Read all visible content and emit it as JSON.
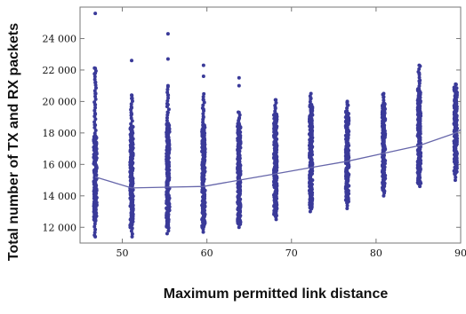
{
  "chart_data": {
    "type": "scatter",
    "title": "",
    "xlabel": "Maximum permitted link distance",
    "ylabel": "Total number of TX and RX packets",
    "xlim": [
      45,
      90
    ],
    "ylim": [
      11000,
      26000
    ],
    "xticks": [
      50,
      60,
      70,
      80,
      90
    ],
    "yticks": [
      12000,
      14000,
      16000,
      18000,
      20000,
      22000,
      24000
    ],
    "ytick_labels": [
      "12 000",
      "14 000",
      "16 000",
      "18 000",
      "20 000",
      "22 000",
      "24 000"
    ],
    "grid": false,
    "point_color": "#3a3a99",
    "line_color": "#6666aa",
    "columns": [
      {
        "x": 46.8,
        "dense_min": 12400,
        "dense_max": 17800,
        "min": 11500,
        "max": 22200,
        "outliers": [
          18500,
          19200,
          19800,
          20500,
          21200,
          21800,
          22100,
          25600,
          11400
        ]
      },
      {
        "x": 51.1,
        "dense_min": 12000,
        "dense_max": 18400,
        "min": 11400,
        "max": 20400,
        "outliers": [
          19200,
          19600,
          20200,
          20400,
          22600
        ]
      },
      {
        "x": 55.4,
        "dense_min": 12000,
        "dense_max": 18600,
        "min": 11600,
        "max": 21000,
        "outliers": [
          19300,
          19800,
          20400,
          21000,
          22700,
          24300
        ]
      },
      {
        "x": 59.6,
        "dense_min": 12000,
        "dense_max": 18500,
        "min": 11700,
        "max": 20500,
        "outliers": [
          19000,
          19500,
          20100,
          21600,
          22300
        ]
      },
      {
        "x": 63.8,
        "dense_min": 12200,
        "dense_max": 18600,
        "min": 12000,
        "max": 19400,
        "outliers": [
          18900,
          19300,
          21000,
          21500
        ]
      },
      {
        "x": 68.1,
        "dense_min": 12700,
        "dense_max": 19200,
        "min": 12500,
        "max": 20200,
        "outliers": [
          19600,
          20100
        ]
      },
      {
        "x": 72.3,
        "dense_min": 13200,
        "dense_max": 19800,
        "min": 13000,
        "max": 20500,
        "outliers": [
          20200,
          20500
        ]
      },
      {
        "x": 76.6,
        "dense_min": 13600,
        "dense_max": 19400,
        "min": 13200,
        "max": 20000,
        "outliers": [
          19800,
          20000
        ]
      },
      {
        "x": 80.9,
        "dense_min": 14300,
        "dense_max": 19900,
        "min": 14000,
        "max": 20500,
        "outliers": [
          20300,
          20500
        ]
      },
      {
        "x": 85.1,
        "dense_min": 14800,
        "dense_max": 20800,
        "min": 14600,
        "max": 22300,
        "outliers": [
          21300,
          21800,
          22300
        ]
      },
      {
        "x": 89.4,
        "dense_min": 15400,
        "dense_max": 20900,
        "min": 15000,
        "max": 21200,
        "outliers": [
          21100
        ]
      }
    ],
    "trend_line": {
      "x": [
        46.8,
        51.1,
        55.4,
        59.6,
        63.8,
        68.1,
        72.3,
        76.6,
        80.9,
        85.1,
        89.4,
        90
      ],
      "y": [
        15200,
        14500,
        14550,
        14600,
        15000,
        15400,
        15800,
        16200,
        16700,
        17200,
        18000,
        18200
      ]
    }
  }
}
